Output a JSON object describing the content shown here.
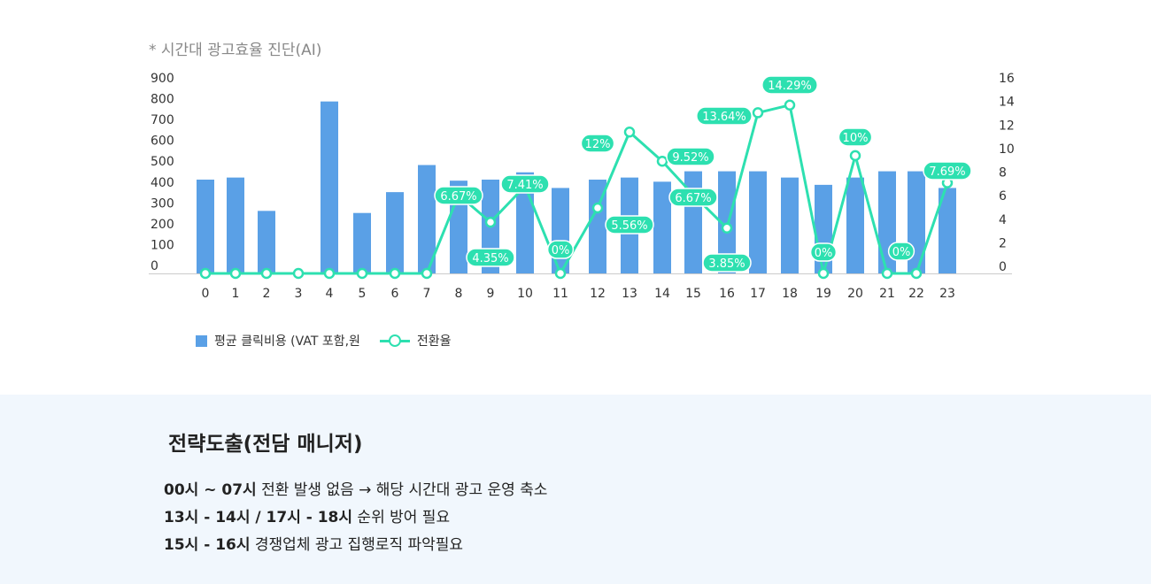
{
  "title": "* 시간대 광고효율 진단(AI)",
  "colors": {
    "bar": "#5aa0e6",
    "line": "#2de0b0",
    "label_bg": "#2de0b0",
    "bottom_bg": "#f1f7fd"
  },
  "chart_data": {
    "type": "bar+line",
    "categories": [
      "0",
      "1",
      "2",
      "3",
      "4",
      "5",
      "6",
      "7",
      "8",
      "9",
      "10",
      "11",
      "12",
      "13",
      "14",
      "15",
      "16",
      "17",
      "18",
      "19",
      "20",
      "21",
      "22",
      "23"
    ],
    "series": [
      {
        "name": "평균 클릭비용 (VAT 포함,원",
        "type": "bar",
        "axis": "left",
        "values": [
          450,
          460,
          300,
          0,
          825,
          290,
          390,
          520,
          445,
          450,
          485,
          410,
          450,
          460,
          440,
          490,
          490,
          490,
          460,
          425,
          460,
          490,
          490,
          410
        ]
      },
      {
        "name": "전환율",
        "type": "line",
        "axis": "right",
        "values": [
          0,
          0,
          0,
          0,
          0,
          0,
          0,
          0,
          6.67,
          4.35,
          7.41,
          0,
          5.56,
          12,
          9.52,
          6.67,
          3.85,
          13.64,
          14.29,
          0,
          10,
          0,
          0,
          7.69
        ]
      }
    ],
    "left_ticks": [
      "0",
      "100",
      "200",
      "300",
      "400",
      "500",
      "600",
      "700",
      "800",
      "900"
    ],
    "right_ticks": [
      "0",
      "2",
      "4",
      "6",
      "8",
      "10",
      "12",
      "14",
      "16"
    ],
    "ylim_left": [
      0,
      900
    ],
    "ylim_right": [
      0,
      16
    ],
    "point_labels": [
      "6.67%",
      "4.35%",
      "7.41%",
      "0%",
      "5.56%",
      "12%",
      "9.52%",
      "6.67%",
      "3.85%",
      "13.64%",
      "14.29%",
      "0%",
      "10%",
      "0%",
      "7.69%"
    ]
  },
  "legend": {
    "bar_label": "평균 클릭비용 (VAT 포함,원",
    "line_label": "전환율"
  },
  "strategy": {
    "title": "전략도출(전담 매니저)",
    "lines": [
      {
        "bold": "00시 ~ 07시",
        "text": " 전환 발생 없음 → 해당 시간대 광고 운영 축소"
      },
      {
        "bold": "13시 - 14시 / 17시 - 18시",
        "text": " 순위 방어 필요"
      },
      {
        "bold": "15시 - 16시",
        "text": " 경쟁업체 광고 집행로직 파악필요"
      }
    ]
  }
}
